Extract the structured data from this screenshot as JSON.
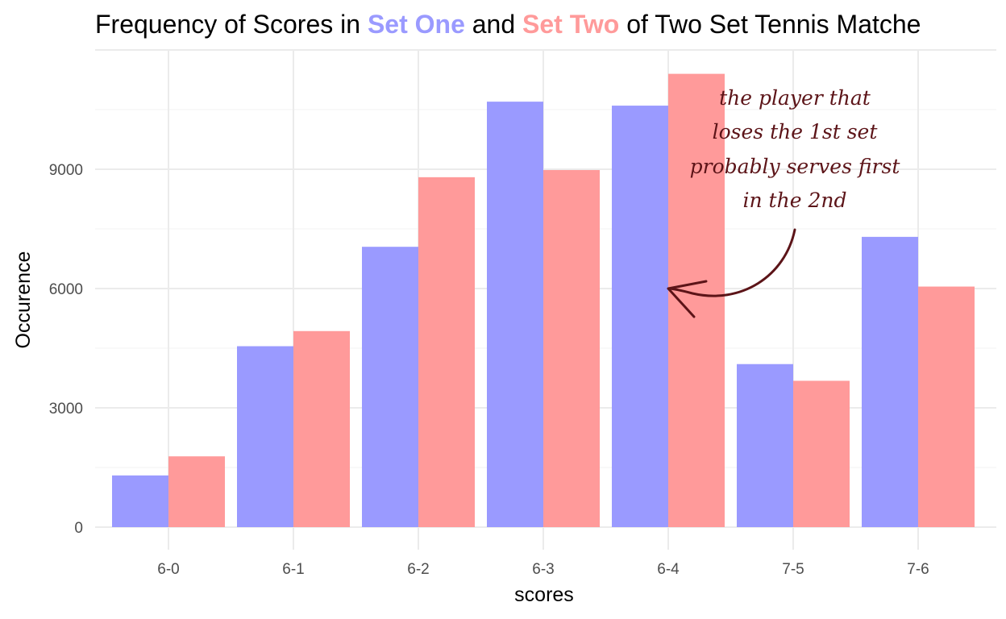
{
  "title": {
    "prefix": "Frequency of Scores in ",
    "set_one": "Set One",
    "middle": " and ",
    "set_two": "Set Two",
    "suffix": " of Two Set Tennis Matche"
  },
  "colors": {
    "set_one": "#9a9aff",
    "set_two": "#ff9a9a",
    "annotation": "#5c1418",
    "grid_major": "#ebebeb",
    "grid_minor": "#f5f5f5"
  },
  "annotation": {
    "lines": [
      "the player that",
      "loses the 1st set",
      "probably serves first",
      "in the 2nd"
    ],
    "points_to_category": "6-4",
    "points_to_value": 6000
  },
  "chart_data": {
    "type": "bar",
    "categories": [
      "6-0",
      "6-1",
      "6-2",
      "6-3",
      "6-4",
      "7-5",
      "7-6"
    ],
    "series": [
      {
        "name": "Set One",
        "values": [
          1300,
          4550,
          7050,
          10700,
          10600,
          4100,
          7300
        ]
      },
      {
        "name": "Set Two",
        "values": [
          1780,
          4930,
          8800,
          8980,
          11400,
          3680,
          6050
        ]
      }
    ],
    "xlabel": "scores",
    "ylabel": "Occurence",
    "yticks": [
      0,
      3000,
      6000,
      9000
    ],
    "ylim": [
      -500,
      12000
    ],
    "grid": true,
    "legend": "none"
  }
}
